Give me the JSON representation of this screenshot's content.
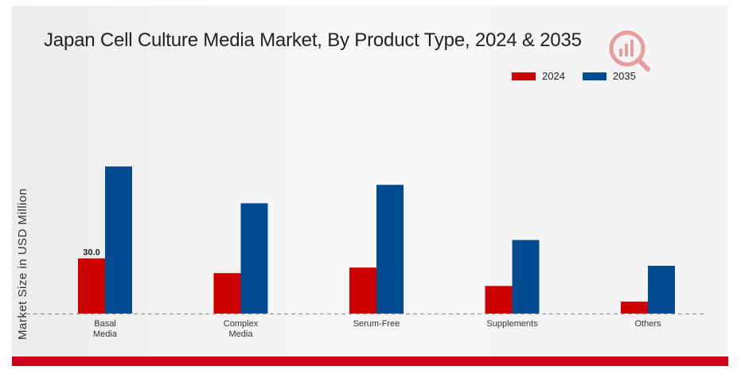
{
  "chart_data": {
    "type": "bar",
    "title": "Japan Cell Culture Media Market, By Product Type, 2024 & 2035",
    "ylabel": "Market Size in USD Million",
    "xlabel": "",
    "categories": [
      "Basal\nMedia",
      "Complex\nMedia",
      "Serum-Free",
      "Supplements",
      "Others"
    ],
    "series": [
      {
        "name": "2024",
        "color": "#cc0000",
        "values": [
          30.0,
          22.0,
          25.0,
          15.0,
          6.5
        ]
      },
      {
        "name": "2035",
        "color": "#004a8f",
        "values": [
          80.0,
          60.0,
          70.0,
          40.0,
          26.0
        ]
      }
    ],
    "data_labels": [
      {
        "series": 0,
        "index": 0,
        "text": "30.0"
      }
    ],
    "ylim": [
      0,
      100
    ],
    "grid": false,
    "legend_position": "top-right"
  }
}
